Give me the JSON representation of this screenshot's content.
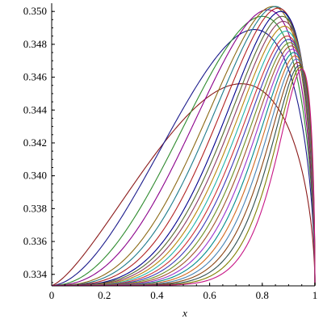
{
  "chart_data": {
    "type": "line",
    "title": "",
    "xlabel": "x",
    "ylabel": "",
    "xlim": [
      0,
      1
    ],
    "ylim": [
      0.3333,
      0.3505
    ],
    "x_ticks": [
      "0",
      "0.2",
      "0.4",
      "0.6",
      "0.8",
      "1"
    ],
    "x_tick_values": [
      0,
      0.2,
      0.4,
      0.6,
      0.8,
      1
    ],
    "y_ticks": [
      "0.334",
      "0.336",
      "0.338",
      "0.340",
      "0.342",
      "0.344",
      "0.346",
      "0.348",
      "0.350"
    ],
    "y_tick_values": [
      0.334,
      0.336,
      0.338,
      0.34,
      0.342,
      0.344,
      0.346,
      0.348,
      0.35
    ],
    "legend": "none",
    "grid": false,
    "curve_model": {
      "description": "family of curves starting at (0, 1/3), rising to a peak then dropping steeply back to 1/3 at x=1",
      "y_start": 0.33333,
      "y_end": 0.33333
    },
    "series": [
      {
        "peak_x": 0.72,
        "peak_y": 0.3456,
        "color": "#8b1a1a"
      },
      {
        "peak_x": 0.77,
        "peak_y": 0.3489,
        "color": "#1a1a8b"
      },
      {
        "peak_x": 0.8,
        "peak_y": 0.3497,
        "color": "#2e8b2e"
      },
      {
        "peak_x": 0.82,
        "peak_y": 0.3501,
        "color": "#8b008b"
      },
      {
        "peak_x": 0.84,
        "peak_y": 0.3503,
        "color": "#8b6914"
      },
      {
        "peak_x": 0.85,
        "peak_y": 0.3503,
        "color": "#1e7b8b"
      },
      {
        "peak_x": 0.86,
        "peak_y": 0.3502,
        "color": "#b22222"
      },
      {
        "peak_x": 0.87,
        "peak_y": 0.35,
        "color": "#00008b"
      },
      {
        "peak_x": 0.875,
        "peak_y": 0.3497,
        "color": "#556b2f"
      },
      {
        "peak_x": 0.88,
        "peak_y": 0.3494,
        "color": "#8b3a62"
      },
      {
        "peak_x": 0.885,
        "peak_y": 0.3491,
        "color": "#b8860b"
      },
      {
        "peak_x": 0.89,
        "peak_y": 0.3488,
        "color": "#20b2aa"
      },
      {
        "peak_x": 0.895,
        "peak_y": 0.3485,
        "color": "#cd3333"
      },
      {
        "peak_x": 0.9,
        "peak_y": 0.3483,
        "color": "#3a3ab8"
      },
      {
        "peak_x": 0.905,
        "peak_y": 0.3481,
        "color": "#6b8e23"
      },
      {
        "peak_x": 0.91,
        "peak_y": 0.3479,
        "color": "#a0522d"
      },
      {
        "peak_x": 0.915,
        "peak_y": 0.3477,
        "color": "#9932cc"
      },
      {
        "peak_x": 0.92,
        "peak_y": 0.3475,
        "color": "#008b8b"
      },
      {
        "peak_x": 0.925,
        "peak_y": 0.3473,
        "color": "#d2691e"
      },
      {
        "peak_x": 0.93,
        "peak_y": 0.3471,
        "color": "#4682b4"
      },
      {
        "peak_x": 0.935,
        "peak_y": 0.3469,
        "color": "#8b4513"
      },
      {
        "peak_x": 0.94,
        "peak_y": 0.3467,
        "color": "#2f4f4f"
      },
      {
        "peak_x": 0.945,
        "peak_y": 0.3466,
        "color": "#808000"
      },
      {
        "peak_x": 0.95,
        "peak_y": 0.3465,
        "color": "#c71585"
      }
    ]
  }
}
